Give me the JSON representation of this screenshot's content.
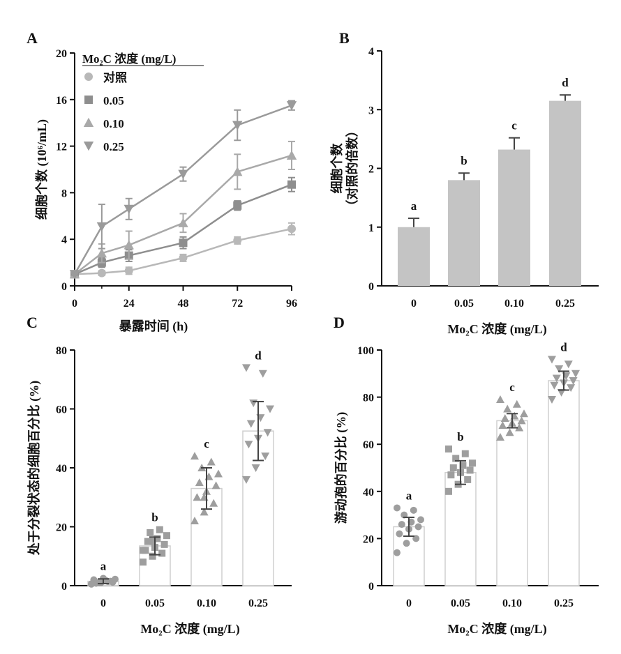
{
  "colors": {
    "axis": "#111111",
    "control": "#b8b8b8",
    "c005": "#8e8e8e",
    "c010": "#a9a9a9",
    "c025": "#9a9a9a",
    "bar": "#c4c4c4",
    "dots": "#9e9e9e",
    "errorbar": "#444444"
  },
  "chart_data": [
    {
      "id": "A",
      "type": "line",
      "panel_label": "A",
      "title": "",
      "xlabel": "暴露时间 (h)",
      "ylabel": "细胞个数 (10⁶/mL)",
      "x": [
        0,
        12,
        24,
        48,
        72,
        96
      ],
      "xticks": [
        "0",
        "24",
        "48",
        "72",
        "96"
      ],
      "xtick_values": [
        0,
        24,
        48,
        72,
        96
      ],
      "xlim": [
        0,
        96
      ],
      "ylim": [
        0,
        20
      ],
      "yticks": [
        "0",
        "4",
        "8",
        "12",
        "16",
        "20"
      ],
      "ytick_values": [
        0,
        4,
        8,
        12,
        16,
        20
      ],
      "legend_title": "Mo₂C 浓度 (mg/L)",
      "legend_position": "top-left",
      "series": [
        {
          "name": "对照",
          "marker": "circle",
          "values": [
            1.0,
            1.1,
            1.3,
            2.4,
            3.9,
            4.9
          ],
          "errors": [
            0.1,
            0.2,
            0.3,
            0.3,
            0.3,
            0.5
          ]
        },
        {
          "name": "0.05",
          "marker": "square",
          "values": [
            1.0,
            2.0,
            2.6,
            3.7,
            6.9,
            8.7
          ],
          "errors": [
            0.1,
            0.4,
            0.5,
            0.5,
            0.4,
            0.6
          ]
        },
        {
          "name": "0.10",
          "marker": "triangle-up",
          "values": [
            1.0,
            2.8,
            3.5,
            5.4,
            9.8,
            11.2
          ],
          "errors": [
            0.1,
            0.8,
            1.2,
            0.8,
            1.5,
            1.2
          ]
        },
        {
          "name": "0.25",
          "marker": "triangle-down",
          "values": [
            1.0,
            5.1,
            6.6,
            9.6,
            13.8,
            15.5
          ],
          "errors": [
            0.1,
            1.9,
            0.9,
            0.6,
            1.3,
            0.4
          ]
        }
      ]
    },
    {
      "id": "B",
      "type": "bar",
      "panel_label": "B",
      "xlabel": "Mo₂C 浓度 (mg/L)",
      "ylabel": "细胞个数",
      "ylabel2": "（对照的倍数）",
      "categories": [
        "0",
        "0.05",
        "0.10",
        "0.25"
      ],
      "values": [
        1.0,
        1.8,
        2.32,
        3.15
      ],
      "errors": [
        0.15,
        0.12,
        0.2,
        0.1
      ],
      "significance": [
        "a",
        "b",
        "c",
        "d"
      ],
      "ylim": [
        0,
        4
      ],
      "yticks": [
        "0",
        "1",
        "2",
        "3",
        "4"
      ],
      "ytick_values": [
        0,
        1,
        2,
        3,
        4
      ]
    },
    {
      "id": "C",
      "type": "bar",
      "panel_label": "C",
      "xlabel": "Mo₂C 浓度 (mg/L)",
      "ylabel": "处于分裂状态的细胞百分比 (%)",
      "categories": [
        "0",
        "0.05",
        "0.10",
        "0.25"
      ],
      "values": [
        1.5,
        13.5,
        33,
        52.5
      ],
      "errors": [
        0.8,
        3,
        7,
        10
      ],
      "points": [
        [
          0.5,
          1.0,
          1.5,
          2.0,
          2.5,
          1.2,
          0.8,
          1.8,
          2.2,
          1.0,
          1.4,
          0.6
        ],
        [
          8,
          10,
          11,
          12,
          13,
          14,
          15,
          16,
          17,
          18,
          19,
          12,
          15
        ],
        [
          22,
          25,
          28,
          30,
          32,
          34,
          35,
          37,
          38,
          40,
          42,
          44,
          30
        ],
        [
          36,
          40,
          44,
          48,
          50,
          52,
          55,
          57,
          60,
          62,
          72,
          74
        ]
      ],
      "significance": [
        "a",
        "b",
        "c",
        "d"
      ],
      "ylim": [
        0,
        80
      ],
      "yticks": [
        "0",
        "20",
        "40",
        "60",
        "80"
      ],
      "ytick_values": [
        0,
        20,
        40,
        60,
        80
      ]
    },
    {
      "id": "D",
      "type": "bar",
      "panel_label": "D",
      "xlabel": "Mo₂C 浓度 (mg/L)",
      "ylabel": "游动孢的百分比 (%)",
      "categories": [
        "0",
        "0.05",
        "0.10",
        "0.25"
      ],
      "values": [
        25,
        48,
        70,
        87
      ],
      "errors": [
        4,
        5,
        3,
        4
      ],
      "points": [
        [
          14,
          18,
          20,
          22,
          24,
          25,
          26,
          27,
          28,
          30,
          32,
          33
        ],
        [
          40,
          43,
          45,
          47,
          48,
          49,
          50,
          51,
          52,
          54,
          56,
          58
        ],
        [
          63,
          65,
          67,
          68,
          69,
          70,
          71,
          72,
          73,
          75,
          77,
          79
        ],
        [
          79,
          82,
          84,
          85,
          86,
          87,
          88,
          89,
          90,
          92,
          94,
          96
        ]
      ],
      "significance": [
        "a",
        "b",
        "c",
        "d"
      ],
      "ylim": [
        0,
        100
      ],
      "yticks": [
        "0",
        "20",
        "40",
        "60",
        "80",
        "100"
      ],
      "ytick_values": [
        0,
        20,
        40,
        60,
        80,
        100
      ]
    }
  ]
}
